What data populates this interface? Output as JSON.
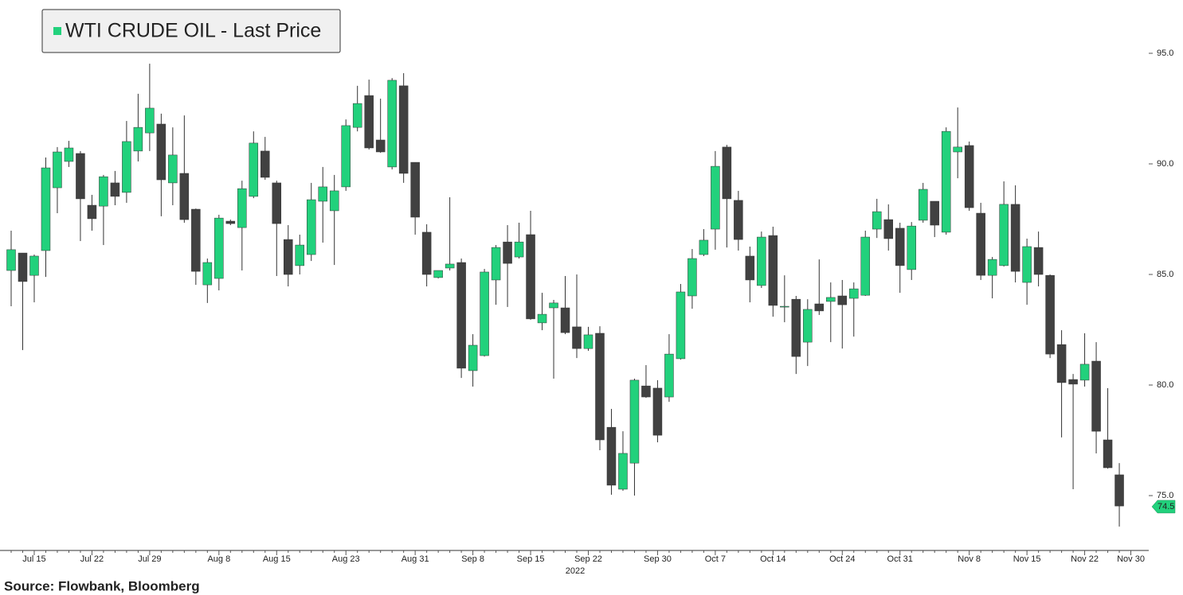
{
  "chart_data": {
    "type": "candlestick",
    "legend_label": "WTI CRUDE OIL - Last Price",
    "source": "Source: Flowbank, Bloomberg",
    "x_year_label": "2022",
    "up_color": "#22d17c",
    "down_color": "#414141",
    "last_price": 74.5,
    "ylim": [
      72.52,
      97.41
    ],
    "yticks": [
      {
        "value": 75,
        "label": "75.0"
      },
      {
        "value": 80,
        "label": "80.0"
      },
      {
        "value": 85,
        "label": "85.0"
      },
      {
        "value": 90,
        "label": "90.0"
      },
      {
        "value": 95,
        "label": "95.0"
      }
    ],
    "categories": [
      null,
      null,
      "Jul 15",
      null,
      null,
      null,
      null,
      "Jul 22",
      null,
      null,
      null,
      null,
      "Jul 29",
      null,
      null,
      null,
      null,
      null,
      "Aug 8",
      null,
      null,
      null,
      null,
      "Aug 15",
      null,
      null,
      null,
      null,
      null,
      "Aug 23",
      null,
      null,
      null,
      null,
      null,
      "Aug 31",
      null,
      null,
      null,
      null,
      "Sep 8",
      null,
      null,
      null,
      null,
      "Sep 15",
      null,
      null,
      null,
      null,
      "Sep 22",
      null,
      null,
      null,
      null,
      null,
      "Sep 30",
      null,
      null,
      null,
      null,
      "Oct 7",
      null,
      null,
      null,
      null,
      "Oct 14",
      null,
      null,
      null,
      null,
      null,
      "Oct 24",
      null,
      null,
      null,
      null,
      "Oct 31",
      null,
      null,
      null,
      null,
      null,
      "Nov 8",
      null,
      null,
      null,
      null,
      "Nov 15",
      null,
      null,
      null,
      null,
      "Nov 22",
      null,
      null,
      null,
      "Nov 30"
    ],
    "open": [
      85.18,
      85.97,
      84.96,
      86.08,
      88.92,
      90.11,
      90.47,
      88.13,
      88.09,
      89.14,
      88.71,
      90.58,
      91.4,
      91.8,
      89.14,
      89.57,
      87.95,
      84.53,
      84.82,
      87.41,
      87.12,
      88.53,
      90.58,
      89.14,
      86.58,
      85.4,
      85.9,
      88.31,
      87.88,
      88.96,
      91.65,
      93.09,
      91.08,
      89.86,
      93.53,
      90.07,
      86.91,
      84.86,
      85.29,
      85.54,
      80.65,
      81.33,
      84.75,
      86.47,
      85.79,
      86.8,
      82.81,
      83.49,
      83.49,
      82.63,
      81.65,
      82.34,
      78.09,
      75.29,
      76.47,
      79.96,
      79.86,
      79.46,
      81.19,
      84.03,
      85.9,
      87.05,
      90.76,
      88.35,
      85.83,
      84.5,
      86.76,
      83.53,
      83.88,
      81.94,
      83.67,
      83.78,
      84.03,
      83.92,
      84.06,
      87.05,
      87.48,
      87.09,
      85.22,
      87.45,
      88.31,
      86.91,
      90.54,
      90.83,
      87.77,
      84.96,
      85.4,
      88.17,
      84.64,
      86.22,
      84.96,
      81.83,
      80.25,
      80.22,
      81.08,
      77.52,
      75.94,
      null
    ],
    "high": [
      86.98,
      85.97,
      85.9,
      90.29,
      90.76,
      91.04,
      90.58,
      88.6,
      89.5,
      89.68,
      91.94,
      93.17,
      94.53,
      92.27,
      91.65,
      92.19,
      87.98,
      85.72,
      87.7,
      87.48,
      89.24,
      91.47,
      91.22,
      89.24,
      87.23,
      86.8,
      89.14,
      89.86,
      89.5,
      92.01,
      93.53,
      93.81,
      92.95,
      93.88,
      94.1,
      90.07,
      87.27,
      85.18,
      88.49,
      85.72,
      82.3,
      85.25,
      86.33,
      87.23,
      87.34,
      87.88,
      84.17,
      83.85,
      84.93,
      85.0,
      82.63,
      82.66,
      78.92,
      77.91,
      80.29,
      80.9,
      80.22,
      82.3,
      84.57,
      86.15,
      87.05,
      90.58,
      90.86,
      88.78,
      86.26,
      86.94,
      87.16,
      84.96,
      84.03,
      83.88,
      85.68,
      84.64,
      84.75,
      84.64,
      86.98,
      88.42,
      88.17,
      87.34,
      87.37,
      89.14,
      88.31,
      91.65,
      92.55,
      91.01,
      88.24,
      85.79,
      89.21,
      89.03,
      86.62,
      86.94,
      85.0,
      82.48,
      80.5,
      82.34,
      81.94,
      79.86,
      76.47,
      null
    ],
    "low": [
      83.56,
      81.58,
      83.74,
      84.89,
      87.77,
      89.86,
      86.51,
      86.98,
      86.33,
      88.13,
      88.24,
      90.11,
      90.58,
      87.63,
      88.13,
      87.34,
      84.53,
      83.71,
      84.28,
      87.23,
      85.18,
      88.45,
      89.28,
      84.93,
      84.46,
      85.0,
      85.61,
      86.44,
      85.43,
      88.78,
      91.47,
      90.65,
      90.5,
      89.75,
      89.14,
      86.8,
      84.46,
      84.82,
      85.18,
      80.32,
      79.93,
      81.29,
      83.63,
      83.53,
      85.72,
      82.95,
      82.48,
      80.29,
      82.3,
      81.22,
      81.55,
      77.05,
      75.04,
      75.22,
      75.0,
      79.42,
      77.41,
      79.24,
      81.15,
      83.45,
      85.83,
      86.12,
      86.22,
      86.08,
      83.74,
      84.39,
      83.09,
      82.84,
      80.5,
      80.86,
      83.17,
      81.94,
      81.65,
      82.19,
      84.03,
      86.65,
      86.08,
      84.17,
      84.75,
      87.34,
      86.69,
      86.8,
      89.35,
      87.88,
      84.75,
      83.92,
      85.36,
      84.64,
      83.63,
      84.46,
      81.22,
      77.63,
      75.29,
      79.93,
      76.91,
      76.22,
      73.6,
      null
    ],
    "close": [
      86.12,
      84.68,
      85.83,
      89.82,
      90.54,
      90.72,
      88.42,
      87.52,
      89.42,
      88.53,
      91.01,
      91.65,
      92.52,
      89.28,
      90.4,
      87.48,
      85.14,
      85.54,
      87.55,
      87.3,
      88.88,
      90.94,
      89.39,
      87.3,
      85.0,
      86.33,
      88.38,
      88.96,
      88.78,
      91.73,
      92.73,
      90.72,
      90.54,
      93.78,
      89.57,
      87.59,
      85.0,
      85.18,
      85.47,
      80.76,
      81.8,
      85.11,
      86.22,
      85.5,
      86.47,
      82.99,
      83.2,
      83.71,
      82.37,
      81.65,
      82.27,
      77.52,
      75.47,
      76.91,
      80.22,
      79.46,
      77.73,
      81.4,
      84.21,
      85.72,
      86.55,
      89.89,
      88.42,
      86.58,
      84.75,
      86.69,
      83.6,
      83.56,
      81.29,
      83.42,
      83.35,
      83.96,
      83.63,
      84.35,
      86.69,
      87.84,
      86.62,
      85.4,
      87.19,
      88.85,
      87.23,
      91.47,
      90.76,
      88.02,
      84.96,
      85.68,
      88.17,
      85.14,
      86.26,
      85.0,
      81.4,
      80.11,
      80.04,
      80.94,
      77.91,
      76.26,
      74.53,
      null
    ]
  }
}
